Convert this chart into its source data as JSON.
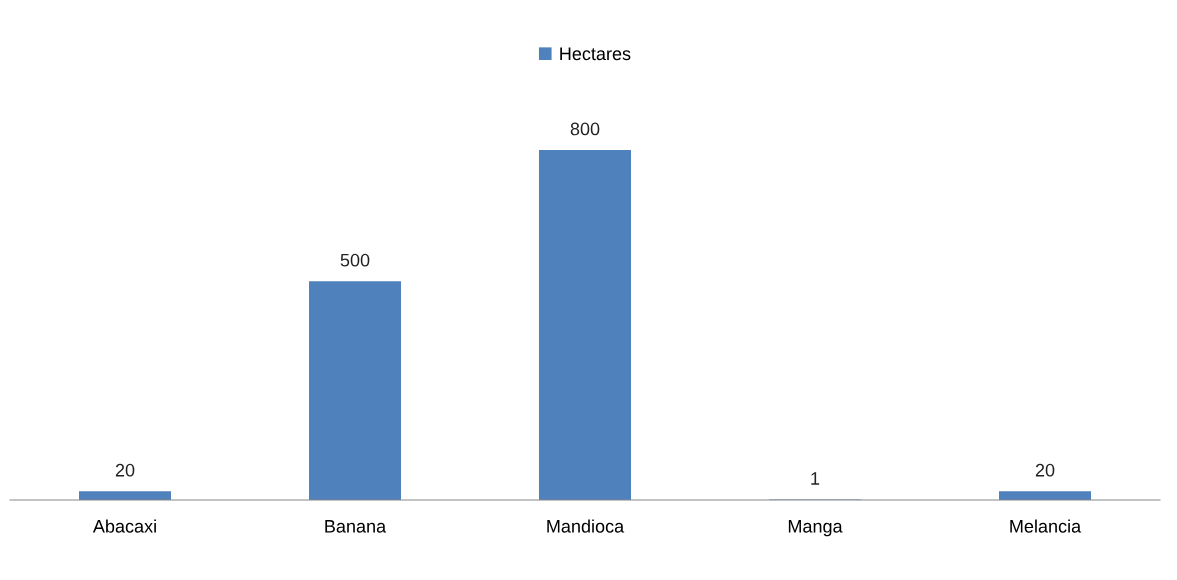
{
  "chart_data": {
    "type": "bar",
    "categories": [
      "Abacaxi",
      "Banana",
      "Mandioca",
      "Manga",
      "Melancia"
    ],
    "series": [
      {
        "name": "Hectares",
        "color": "#4f81bd",
        "values": [
          20,
          500,
          800,
          1,
          20
        ]
      }
    ],
    "data_labels": true,
    "legend": "top",
    "grid": false
  }
}
